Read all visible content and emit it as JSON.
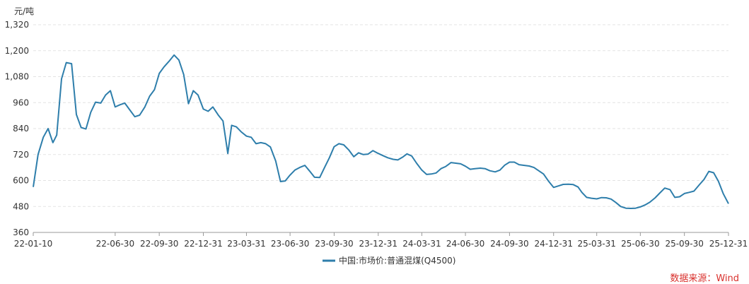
{
  "chart_data": {
    "type": "line",
    "ylabel_unit": "元/吨",
    "ylim": [
      360,
      1320
    ],
    "yticks": [
      360,
      480,
      600,
      720,
      840,
      960,
      1080,
      1200,
      1320
    ],
    "ytick_labels": [
      "360",
      "480",
      "600",
      "720",
      "840",
      "960",
      "1,080",
      "1,200",
      "1,320"
    ],
    "xticks": [
      "2022-01-10",
      "2022-06-30",
      "2022-09-30",
      "2022-12-31",
      "2023-03-31",
      "2023-06-30",
      "2023-09-30",
      "2023-12-31",
      "2024-03-31",
      "2024-06-30",
      "2024-09-30",
      "2024-12-31",
      "2025-03-31",
      "2025-06-30",
      "2025-09-30",
      "2025-12-31"
    ],
    "xtick_labels": [
      "22-01-10",
      "22-06-30",
      "22-09-30",
      "22-12-31",
      "23-03-31",
      "23-06-30",
      "23-09-30",
      "23-12-31",
      "24-03-31",
      "24-06-30",
      "24-09-30",
      "24-12-31",
      "25-03-31",
      "25-06-30",
      "25-09-30",
      "25-12-31"
    ],
    "xlim": [
      "2022-01-10",
      "2025-12-31"
    ],
    "grid": "horizontal",
    "legend": "bottom-center",
    "series": [
      {
        "name": "中国:市场价:普通混煤(Q4500)",
        "color": "#2e7eab",
        "points": [
          [
            "2022-01-10",
            570
          ],
          [
            "2022-01-20",
            720
          ],
          [
            "2022-01-31",
            800
          ],
          [
            "2022-02-10",
            840
          ],
          [
            "2022-02-20",
            775
          ],
          [
            "2022-02-28",
            810
          ],
          [
            "2022-03-10",
            1070
          ],
          [
            "2022-03-20",
            1145
          ],
          [
            "2022-03-31",
            1140
          ],
          [
            "2022-04-10",
            905
          ],
          [
            "2022-04-20",
            845
          ],
          [
            "2022-04-30",
            838
          ],
          [
            "2022-05-10",
            915
          ],
          [
            "2022-05-20",
            962
          ],
          [
            "2022-05-31",
            958
          ],
          [
            "2022-06-10",
            995
          ],
          [
            "2022-06-20",
            1015
          ],
          [
            "2022-06-30",
            940
          ],
          [
            "2022-07-10",
            950
          ],
          [
            "2022-07-20",
            958
          ],
          [
            "2022-07-31",
            925
          ],
          [
            "2022-08-10",
            895
          ],
          [
            "2022-08-20",
            902
          ],
          [
            "2022-08-31",
            940
          ],
          [
            "2022-09-10",
            990
          ],
          [
            "2022-09-20",
            1020
          ],
          [
            "2022-09-30",
            1095
          ],
          [
            "2022-10-10",
            1125
          ],
          [
            "2022-10-20",
            1150
          ],
          [
            "2022-10-31",
            1180
          ],
          [
            "2022-11-10",
            1157
          ],
          [
            "2022-11-20",
            1090
          ],
          [
            "2022-11-30",
            955
          ],
          [
            "2022-12-10",
            1015
          ],
          [
            "2022-12-20",
            995
          ],
          [
            "2022-12-31",
            930
          ],
          [
            "2023-01-10",
            920
          ],
          [
            "2023-01-20",
            940
          ],
          [
            "2023-01-31",
            903
          ],
          [
            "2023-02-10",
            875
          ],
          [
            "2023-02-20",
            725
          ],
          [
            "2023-02-28",
            855
          ],
          [
            "2023-03-10",
            848
          ],
          [
            "2023-03-20",
            825
          ],
          [
            "2023-03-31",
            805
          ],
          [
            "2023-04-10",
            800
          ],
          [
            "2023-04-20",
            770
          ],
          [
            "2023-04-30",
            775
          ],
          [
            "2023-05-10",
            770
          ],
          [
            "2023-05-20",
            755
          ],
          [
            "2023-05-31",
            690
          ],
          [
            "2023-06-10",
            595
          ],
          [
            "2023-06-20",
            598
          ],
          [
            "2023-06-30",
            625
          ],
          [
            "2023-07-10",
            648
          ],
          [
            "2023-07-20",
            660
          ],
          [
            "2023-07-31",
            670
          ],
          [
            "2023-08-10",
            643
          ],
          [
            "2023-08-20",
            615
          ],
          [
            "2023-08-31",
            614
          ],
          [
            "2023-09-10",
            660
          ],
          [
            "2023-09-20",
            705
          ],
          [
            "2023-09-30",
            756
          ],
          [
            "2023-10-10",
            770
          ],
          [
            "2023-10-20",
            765
          ],
          [
            "2023-10-31",
            740
          ],
          [
            "2023-11-10",
            710
          ],
          [
            "2023-11-20",
            728
          ],
          [
            "2023-11-30",
            720
          ],
          [
            "2023-12-10",
            722
          ],
          [
            "2023-12-20",
            738
          ],
          [
            "2023-12-31",
            725
          ],
          [
            "2024-01-10",
            715
          ],
          [
            "2024-01-20",
            705
          ],
          [
            "2024-01-31",
            698
          ],
          [
            "2024-02-10",
            695
          ],
          [
            "2024-02-20",
            708
          ],
          [
            "2024-02-29",
            723
          ],
          [
            "2024-03-10",
            713
          ],
          [
            "2024-03-20",
            680
          ],
          [
            "2024-03-31",
            648
          ],
          [
            "2024-04-10",
            628
          ],
          [
            "2024-04-20",
            630
          ],
          [
            "2024-04-30",
            635
          ],
          [
            "2024-05-10",
            655
          ],
          [
            "2024-05-20",
            665
          ],
          [
            "2024-05-31",
            683
          ],
          [
            "2024-06-10",
            680
          ],
          [
            "2024-06-20",
            677
          ],
          [
            "2024-06-30",
            666
          ],
          [
            "2024-07-10",
            652
          ],
          [
            "2024-07-20",
            655
          ],
          [
            "2024-07-31",
            657
          ],
          [
            "2024-08-10",
            655
          ],
          [
            "2024-08-20",
            645
          ],
          [
            "2024-08-31",
            640
          ],
          [
            "2024-09-10",
            648
          ],
          [
            "2024-09-20",
            671
          ],
          [
            "2024-09-30",
            685
          ],
          [
            "2024-10-10",
            685
          ],
          [
            "2024-10-20",
            673
          ],
          [
            "2024-10-31",
            670
          ],
          [
            "2024-11-10",
            667
          ],
          [
            "2024-11-20",
            660
          ],
          [
            "2024-11-30",
            645
          ],
          [
            "2024-12-10",
            630
          ],
          [
            "2024-12-20",
            598
          ],
          [
            "2024-12-31",
            568
          ],
          [
            "2025-01-10",
            575
          ],
          [
            "2025-01-20",
            582
          ],
          [
            "2025-01-31",
            583
          ],
          [
            "2025-02-10",
            581
          ],
          [
            "2025-02-20",
            570
          ],
          [
            "2025-02-28",
            545
          ],
          [
            "2025-03-10",
            522
          ],
          [
            "2025-03-20",
            518
          ],
          [
            "2025-03-31",
            515
          ],
          [
            "2025-04-10",
            521
          ],
          [
            "2025-04-20",
            520
          ],
          [
            "2025-04-30",
            514
          ],
          [
            "2025-05-10",
            498
          ],
          [
            "2025-05-20",
            480
          ],
          [
            "2025-05-31",
            472
          ],
          [
            "2025-06-10",
            471
          ],
          [
            "2025-06-20",
            472
          ],
          [
            "2025-06-30",
            478
          ],
          [
            "2025-07-10",
            487
          ],
          [
            "2025-07-20",
            500
          ],
          [
            "2025-07-31",
            520
          ],
          [
            "2025-08-10",
            543
          ],
          [
            "2025-08-20",
            565
          ],
          [
            "2025-08-31",
            558
          ],
          [
            "2025-09-10",
            522
          ],
          [
            "2025-09-20",
            525
          ],
          [
            "2025-09-30",
            540
          ],
          [
            "2025-10-10",
            545
          ],
          [
            "2025-10-20",
            551
          ],
          [
            "2025-10-31",
            580
          ],
          [
            "2025-11-10",
            605
          ],
          [
            "2025-11-20",
            642
          ],
          [
            "2025-11-30",
            636
          ],
          [
            "2025-12-10",
            596
          ],
          [
            "2025-12-20",
            540
          ],
          [
            "2025-12-31",
            493
          ]
        ]
      }
    ]
  },
  "source_label": "数据来源：Wind"
}
